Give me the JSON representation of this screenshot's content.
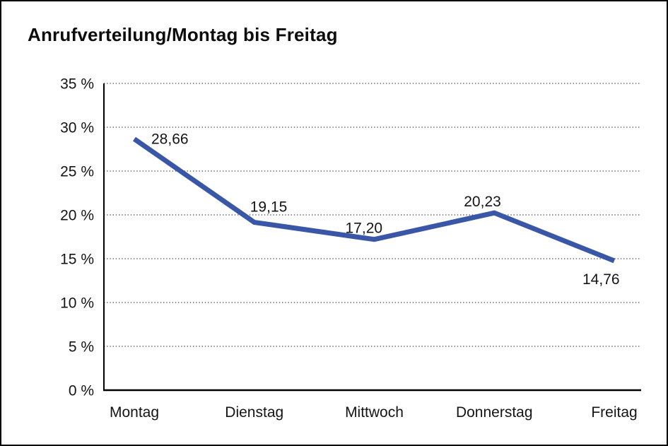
{
  "title": "Anrufverteilung/Montag bis Freitag",
  "chart_data": {
    "type": "line",
    "title": "Anrufverteilung/Montag bis Freitag",
    "categories": [
      "Montag",
      "Dienstag",
      "Mittwoch",
      "Donnerstag",
      "Freitag"
    ],
    "values": [
      28.66,
      19.15,
      17.2,
      20.23,
      14.76
    ],
    "point_labels": [
      "28,66",
      "19,15",
      "17,20",
      "20,23",
      "14,76"
    ],
    "xlabel": "",
    "ylabel": "",
    "ylim": [
      0,
      35
    ],
    "yticks": [
      {
        "value": 0,
        "label": "0 %"
      },
      {
        "value": 5,
        "label": "5 %"
      },
      {
        "value": 10,
        "label": "10 %"
      },
      {
        "value": 15,
        "label": "15 %"
      },
      {
        "value": 20,
        "label": "20 %"
      },
      {
        "value": 25,
        "label": "25 %"
      },
      {
        "value": 30,
        "label": "30 %"
      },
      {
        "value": 35,
        "label": "35 %"
      }
    ],
    "grid": "horizontal-dotted",
    "legend": "none",
    "line_color": "#3A57A7",
    "axis_color": "#000000",
    "text_color": "#141414",
    "background_color": "#ffffff"
  }
}
